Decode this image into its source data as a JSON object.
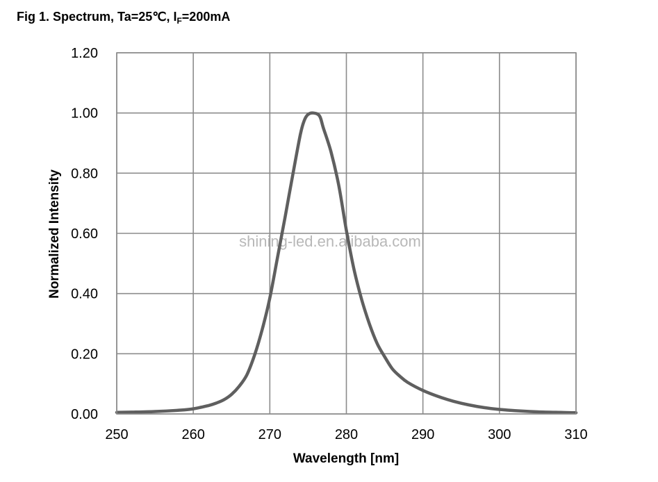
{
  "title": {
    "prefix": "Fig 1. Spectrum, Ta=25℃, I",
    "subscript": "F",
    "suffix": "=200mA"
  },
  "watermark": "shining-led.en.alibaba.com",
  "colors": {
    "curve": "#5f5f5f",
    "grid": "#8c8c8c",
    "watermark": "#b8b8b8"
  },
  "chart_data": {
    "type": "line",
    "title": "Fig 1. Spectrum, Ta=25℃, IF=200mA",
    "xlabel": "Wavelength [nm]",
    "ylabel": "Normalized Intensity",
    "xlim": [
      250,
      310
    ],
    "ylim": [
      0,
      1.2
    ],
    "xticks": [
      250,
      260,
      270,
      280,
      290,
      300,
      310
    ],
    "xtick_labels": [
      "250",
      "260",
      "270",
      "280",
      "290",
      "300",
      "310"
    ],
    "yticks": [
      0,
      0.2,
      0.4,
      0.6,
      0.8,
      1.0,
      1.2
    ],
    "ytick_labels": [
      "0.00",
      "0.20",
      "0.40",
      "0.60",
      "0.80",
      "1.00",
      "1.20"
    ],
    "grid": true,
    "legend": null,
    "series": [
      {
        "name": "Spectrum",
        "x": [
          250,
          252,
          255,
          258,
          260,
          262,
          263,
          264,
          265,
          266,
          267,
          268,
          269,
          270,
          271,
          272,
          273,
          274,
          274.5,
          275,
          275.7,
          276.5,
          277,
          278,
          279,
          280,
          281,
          282,
          283,
          284,
          285,
          286,
          287,
          288,
          290,
          292,
          294,
          296,
          298,
          300,
          302,
          305,
          308,
          310
        ],
        "y": [
          0.005,
          0.006,
          0.008,
          0.012,
          0.017,
          0.028,
          0.036,
          0.047,
          0.065,
          0.092,
          0.13,
          0.195,
          0.28,
          0.385,
          0.52,
          0.655,
          0.795,
          0.93,
          0.975,
          0.995,
          1.0,
          0.99,
          0.95,
          0.87,
          0.76,
          0.61,
          0.48,
          0.38,
          0.3,
          0.235,
          0.19,
          0.15,
          0.125,
          0.105,
          0.078,
          0.058,
          0.042,
          0.03,
          0.021,
          0.015,
          0.011,
          0.007,
          0.005,
          0.004
        ]
      }
    ],
    "peak_wavelength_nm": 275.7
  }
}
